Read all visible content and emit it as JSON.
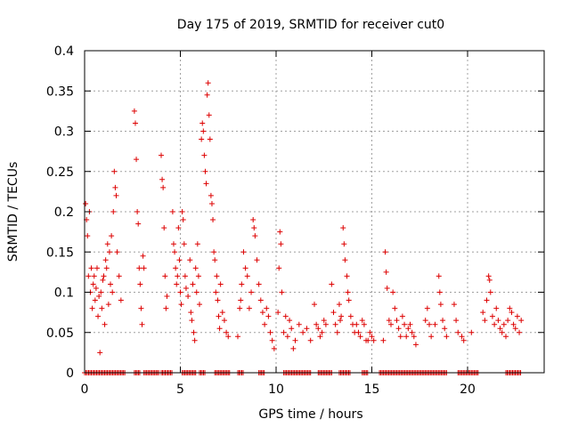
{
  "chart_data": {
    "type": "scatter",
    "title": "Day 175 of 2019, SRMTID for receiver cut0",
    "xlabel": "GPS time / hours",
    "ylabel": "SRMTID / TECUs",
    "xlim": [
      0,
      24
    ],
    "ylim": [
      0,
      0.4
    ],
    "x_ticks": [
      0,
      5,
      10,
      15,
      20
    ],
    "x_tick_labels": [
      "0",
      "5",
      "10",
      "15",
      "20"
    ],
    "y_ticks": [
      0,
      0.05,
      0.1,
      0.15,
      0.2,
      0.25,
      0.3,
      0.35,
      0.4
    ],
    "y_tick_labels": [
      "0",
      "0.05",
      "0.1",
      "0.15",
      "0.2",
      "0.25",
      "0.3",
      "0.35",
      "0.4"
    ],
    "grid": true,
    "marker": "plus",
    "color": "#dd0000",
    "series": [
      {
        "name": "SRMTID",
        "points": [
          [
            0.05,
            0.21
          ],
          [
            0.1,
            0.19
          ],
          [
            0.15,
            0.17
          ],
          [
            0.2,
            0.12
          ],
          [
            0.25,
            0.2
          ],
          [
            0.3,
            0.1
          ],
          [
            0.35,
            0.13
          ],
          [
            0.4,
            0.08
          ],
          [
            0.45,
            0.11
          ],
          [
            0.5,
            0.12
          ],
          [
            0.55,
            0.09
          ],
          [
            0.6,
            0.105
          ],
          [
            0.65,
            0.13
          ],
          [
            0.7,
            0.07
          ],
          [
            0.75,
            0.095
          ],
          [
            0.8,
            0.025
          ],
          [
            0.85,
            0.1
          ],
          [
            0.9,
            0.08
          ],
          [
            0.95,
            0.115
          ],
          [
            1.0,
            0.12
          ],
          [
            1.05,
            0.06
          ],
          [
            1.1,
            0.14
          ],
          [
            1.15,
            0.13
          ],
          [
            1.2,
            0.16
          ],
          [
            1.25,
            0.085
          ],
          [
            1.3,
            0.15
          ],
          [
            1.35,
            0.11
          ],
          [
            1.4,
            0.17
          ],
          [
            1.45,
            0.1
          ],
          [
            1.5,
            0.2
          ],
          [
            1.55,
            0.25
          ],
          [
            1.6,
            0.23
          ],
          [
            1.65,
            0.22
          ],
          [
            1.7,
            0.15
          ],
          [
            1.8,
            0.12
          ],
          [
            1.9,
            0.09
          ],
          [
            2.6,
            0.325
          ],
          [
            2.65,
            0.31
          ],
          [
            2.7,
            0.265
          ],
          [
            2.75,
            0.2
          ],
          [
            2.8,
            0.185
          ],
          [
            2.85,
            0.13
          ],
          [
            2.9,
            0.11
          ],
          [
            2.95,
            0.08
          ],
          [
            3.0,
            0.06
          ],
          [
            3.05,
            0.145
          ],
          [
            3.1,
            0.13
          ],
          [
            4.0,
            0.27
          ],
          [
            4.05,
            0.24
          ],
          [
            4.1,
            0.23
          ],
          [
            4.15,
            0.18
          ],
          [
            4.2,
            0.12
          ],
          [
            4.25,
            0.08
          ],
          [
            4.3,
            0.095
          ],
          [
            4.6,
            0.2
          ],
          [
            4.65,
            0.16
          ],
          [
            4.7,
            0.15
          ],
          [
            4.75,
            0.13
          ],
          [
            4.8,
            0.11
          ],
          [
            4.85,
            0.12
          ],
          [
            4.9,
            0.18
          ],
          [
            4.95,
            0.14
          ],
          [
            5.0,
            0.1
          ],
          [
            5.05,
            0.085
          ],
          [
            5.1,
            0.2
          ],
          [
            5.15,
            0.19
          ],
          [
            5.2,
            0.16
          ],
          [
            5.25,
            0.12
          ],
          [
            5.3,
            0.105
          ],
          [
            5.4,
            0.095
          ],
          [
            5.5,
            0.14
          ],
          [
            5.55,
            0.075
          ],
          [
            5.6,
            0.065
          ],
          [
            5.65,
            0.11
          ],
          [
            5.7,
            0.05
          ],
          [
            5.75,
            0.04
          ],
          [
            5.8,
            0.13
          ],
          [
            5.85,
            0.1
          ],
          [
            5.9,
            0.16
          ],
          [
            5.95,
            0.12
          ],
          [
            6.0,
            0.085
          ],
          [
            6.1,
            0.29
          ],
          [
            6.15,
            0.31
          ],
          [
            6.2,
            0.3
          ],
          [
            6.25,
            0.27
          ],
          [
            6.3,
            0.25
          ],
          [
            6.35,
            0.235
          ],
          [
            6.4,
            0.345
          ],
          [
            6.45,
            0.36
          ],
          [
            6.5,
            0.32
          ],
          [
            6.55,
            0.29
          ],
          [
            6.6,
            0.22
          ],
          [
            6.65,
            0.21
          ],
          [
            6.7,
            0.19
          ],
          [
            6.75,
            0.15
          ],
          [
            6.8,
            0.14
          ],
          [
            6.85,
            0.1
          ],
          [
            6.9,
            0.12
          ],
          [
            6.95,
            0.09
          ],
          [
            7.0,
            0.07
          ],
          [
            7.05,
            0.055
          ],
          [
            7.1,
            0.11
          ],
          [
            7.2,
            0.075
          ],
          [
            7.3,
            0.065
          ],
          [
            7.4,
            0.05
          ],
          [
            7.5,
            0.045
          ],
          [
            8.0,
            0.045
          ],
          [
            8.1,
            0.08
          ],
          [
            8.15,
            0.09
          ],
          [
            8.2,
            0.11
          ],
          [
            8.3,
            0.15
          ],
          [
            8.4,
            0.13
          ],
          [
            8.5,
            0.12
          ],
          [
            8.6,
            0.08
          ],
          [
            8.7,
            0.1
          ],
          [
            8.8,
            0.19
          ],
          [
            8.85,
            0.18
          ],
          [
            8.9,
            0.17
          ],
          [
            9.0,
            0.14
          ],
          [
            9.1,
            0.11
          ],
          [
            9.2,
            0.09
          ],
          [
            9.3,
            0.075
          ],
          [
            9.4,
            0.06
          ],
          [
            9.5,
            0.08
          ],
          [
            9.6,
            0.07
          ],
          [
            9.7,
            0.05
          ],
          [
            9.8,
            0.04
          ],
          [
            9.9,
            0.03
          ],
          [
            10.1,
            0.075
          ],
          [
            10.15,
            0.13
          ],
          [
            10.2,
            0.175
          ],
          [
            10.25,
            0.16
          ],
          [
            10.3,
            0.1
          ],
          [
            10.4,
            0.05
          ],
          [
            10.5,
            0.07
          ],
          [
            10.6,
            0.045
          ],
          [
            10.7,
            0.065
          ],
          [
            10.8,
            0.055
          ],
          [
            10.9,
            0.03
          ],
          [
            11.0,
            0.04
          ],
          [
            11.2,
            0.06
          ],
          [
            11.4,
            0.05
          ],
          [
            11.6,
            0.055
          ],
          [
            11.8,
            0.04
          ],
          [
            12.0,
            0.085
          ],
          [
            12.1,
            0.06
          ],
          [
            12.2,
            0.055
          ],
          [
            12.3,
            0.045
          ],
          [
            12.4,
            0.05
          ],
          [
            12.5,
            0.065
          ],
          [
            12.6,
            0.06
          ],
          [
            12.9,
            0.11
          ],
          [
            13.0,
            0.075
          ],
          [
            13.1,
            0.06
          ],
          [
            13.2,
            0.05
          ],
          [
            13.3,
            0.085
          ],
          [
            13.35,
            0.065
          ],
          [
            13.4,
            0.07
          ],
          [
            13.5,
            0.18
          ],
          [
            13.55,
            0.16
          ],
          [
            13.6,
            0.14
          ],
          [
            13.7,
            0.12
          ],
          [
            13.75,
            0.1
          ],
          [
            13.8,
            0.09
          ],
          [
            13.9,
            0.07
          ],
          [
            14.0,
            0.06
          ],
          [
            14.1,
            0.05
          ],
          [
            14.2,
            0.06
          ],
          [
            14.3,
            0.05
          ],
          [
            14.4,
            0.045
          ],
          [
            14.5,
            0.065
          ],
          [
            14.6,
            0.06
          ],
          [
            14.7,
            0.04
          ],
          [
            14.8,
            0.04
          ],
          [
            14.9,
            0.05
          ],
          [
            15.0,
            0.045
          ],
          [
            15.1,
            0.04
          ],
          [
            15.6,
            0.04
          ],
          [
            15.7,
            0.15
          ],
          [
            15.75,
            0.125
          ],
          [
            15.8,
            0.105
          ],
          [
            15.9,
            0.065
          ],
          [
            16.0,
            0.06
          ],
          [
            16.1,
            0.1
          ],
          [
            16.2,
            0.08
          ],
          [
            16.3,
            0.065
          ],
          [
            16.4,
            0.055
          ],
          [
            16.5,
            0.045
          ],
          [
            16.6,
            0.07
          ],
          [
            16.7,
            0.06
          ],
          [
            16.8,
            0.045
          ],
          [
            16.9,
            0.055
          ],
          [
            17.0,
            0.06
          ],
          [
            17.1,
            0.05
          ],
          [
            17.2,
            0.045
          ],
          [
            17.3,
            0.035
          ],
          [
            17.8,
            0.065
          ],
          [
            17.9,
            0.08
          ],
          [
            18.0,
            0.06
          ],
          [
            18.1,
            0.045
          ],
          [
            18.3,
            0.06
          ],
          [
            18.5,
            0.12
          ],
          [
            18.55,
            0.1
          ],
          [
            18.6,
            0.085
          ],
          [
            18.7,
            0.065
          ],
          [
            18.8,
            0.055
          ],
          [
            18.9,
            0.045
          ],
          [
            19.3,
            0.085
          ],
          [
            19.4,
            0.065
          ],
          [
            19.5,
            0.05
          ],
          [
            19.7,
            0.045
          ],
          [
            19.8,
            0.04
          ],
          [
            20.2,
            0.05
          ],
          [
            20.8,
            0.075
          ],
          [
            20.9,
            0.065
          ],
          [
            21.0,
            0.09
          ],
          [
            21.1,
            0.12
          ],
          [
            21.15,
            0.115
          ],
          [
            21.2,
            0.1
          ],
          [
            21.3,
            0.07
          ],
          [
            21.4,
            0.06
          ],
          [
            21.5,
            0.08
          ],
          [
            21.6,
            0.065
          ],
          [
            21.7,
            0.055
          ],
          [
            21.8,
            0.05
          ],
          [
            21.9,
            0.06
          ],
          [
            22.0,
            0.045
          ],
          [
            22.1,
            0.065
          ],
          [
            22.2,
            0.08
          ],
          [
            22.3,
            0.075
          ],
          [
            22.4,
            0.06
          ],
          [
            22.5,
            0.055
          ],
          [
            22.6,
            0.07
          ],
          [
            22.7,
            0.05
          ],
          [
            22.8,
            0.065
          ]
        ]
      }
    ],
    "zero_value_segments": [
      [
        0.0,
        2.1
      ],
      [
        2.6,
        2.9
      ],
      [
        3.1,
        3.9
      ],
      [
        4.0,
        4.6
      ],
      [
        5.1,
        5.8
      ],
      [
        6.0,
        6.3
      ],
      [
        6.8,
        7.6
      ],
      [
        8.0,
        8.3
      ],
      [
        9.1,
        9.4
      ],
      [
        10.4,
        11.8
      ],
      [
        12.2,
        12.9
      ],
      [
        13.3,
        13.9
      ],
      [
        14.5,
        14.8
      ],
      [
        15.4,
        18.9
      ],
      [
        19.5,
        20.6
      ],
      [
        22.0,
        22.8
      ]
    ]
  }
}
